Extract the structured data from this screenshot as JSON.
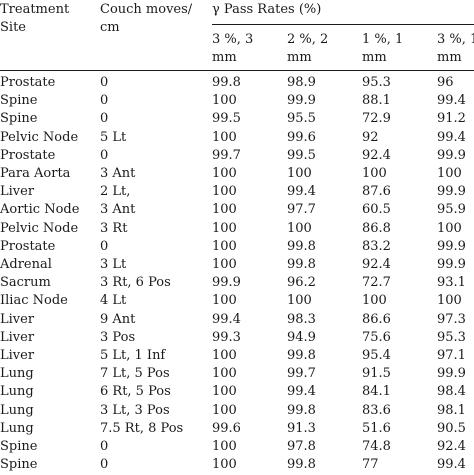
{
  "table": {
    "headers": {
      "site_line1": "Treatment",
      "site_line2": "Site",
      "couch_line1": "Couch moves/",
      "couch_line2": "cm",
      "group": "γ Pass Rates (%)",
      "sub": [
        {
          "line1": "3 %, 3",
          "line2": "mm"
        },
        {
          "line1": "2 %, 2",
          "line2": "mm"
        },
        {
          "line1": "1 %, 1",
          "line2": "mm"
        },
        {
          "line1": "3 %, 1",
          "line2": "mm"
        }
      ]
    },
    "rows": [
      {
        "site": "Prostate",
        "couch": "0",
        "v1": "99.8",
        "v2": "98.9",
        "v3": "95.3",
        "v4": "96"
      },
      {
        "site": "Spine",
        "couch": "0",
        "v1": "100",
        "v2": "99.9",
        "v3": "88.1",
        "v4": "99.4"
      },
      {
        "site": "Spine",
        "couch": "0",
        "v1": "99.5",
        "v2": "95.5",
        "v3": "72.9",
        "v4": "91.2"
      },
      {
        "site": "Pelvic Node",
        "couch": "5 Lt",
        "v1": "100",
        "v2": "99.6",
        "v3": "92",
        "v4": "99.4"
      },
      {
        "site": "Prostate",
        "couch": "0",
        "v1": "99.7",
        "v2": "99.5",
        "v3": "92.4",
        "v4": "99.9"
      },
      {
        "site": "Para Aorta",
        "couch": "3 Ant",
        "v1": "100",
        "v2": "100",
        "v3": "100",
        "v4": "100"
      },
      {
        "site": "Liver",
        "couch": "2 Lt,",
        "v1": "100",
        "v2": "99.4",
        "v3": "87.6",
        "v4": "99.9"
      },
      {
        "site": "Aortic Node",
        "couch": "3 Ant",
        "v1": "100",
        "v2": "97.7",
        "v3": "60.5",
        "v4": "95.9"
      },
      {
        "site": "Pelvic Node",
        "couch": "3 Rt",
        "v1": "100",
        "v2": "100",
        "v3": "86.8",
        "v4": "100"
      },
      {
        "site": "Prostate",
        "couch": "0",
        "v1": "100",
        "v2": "99.8",
        "v3": "83.2",
        "v4": "99.9"
      },
      {
        "site": "Adrenal",
        "couch": "3 Lt",
        "v1": "100",
        "v2": "99.8",
        "v3": "92.4",
        "v4": "99.9"
      },
      {
        "site": "Sacrum",
        "couch": "3 Rt, 6 Pos",
        "v1": "99.9",
        "v2": "96.2",
        "v3": "72.7",
        "v4": "93.1"
      },
      {
        "site": "Iliac Node",
        "couch": "4 Lt",
        "v1": "100",
        "v2": "100",
        "v3": "100",
        "v4": "100"
      },
      {
        "site": "Liver",
        "couch": "9 Ant",
        "v1": "99.4",
        "v2": "98.3",
        "v3": "86.6",
        "v4": "97.3"
      },
      {
        "site": "Liver",
        "couch": "3 Pos",
        "v1": "99.3",
        "v2": "94.9",
        "v3": "75.6",
        "v4": "95.3"
      },
      {
        "site": "Liver",
        "couch": "5 Lt, 1 Inf",
        "v1": "100",
        "v2": "99.8",
        "v3": "95.4",
        "v4": "97.1"
      },
      {
        "site": "Lung",
        "couch": "7 Lt, 5 Pos",
        "v1": "100",
        "v2": "99.7",
        "v3": "91.5",
        "v4": "99.9"
      },
      {
        "site": "Lung",
        "couch": "6 Rt, 5 Pos",
        "v1": "100",
        "v2": "99.4",
        "v3": "84.1",
        "v4": "98.4"
      },
      {
        "site": "Lung",
        "couch": "3 Lt, 3 Pos",
        "v1": "100",
        "v2": "99.8",
        "v3": "83.6",
        "v4": "98.1"
      },
      {
        "site": "Lung",
        "couch": "7.5 Rt, 8 Pos",
        "v1": "99.6",
        "v2": "91.3",
        "v3": "51.6",
        "v4": "90.5"
      },
      {
        "site": "Spine",
        "couch": "0",
        "v1": "100",
        "v2": "97.8",
        "v3": "74.8",
        "v4": "92.4"
      },
      {
        "site": "Spine",
        "couch": "0",
        "v1": "100",
        "v2": "99.8",
        "v3": "77",
        "v4": "99.4"
      }
    ]
  }
}
